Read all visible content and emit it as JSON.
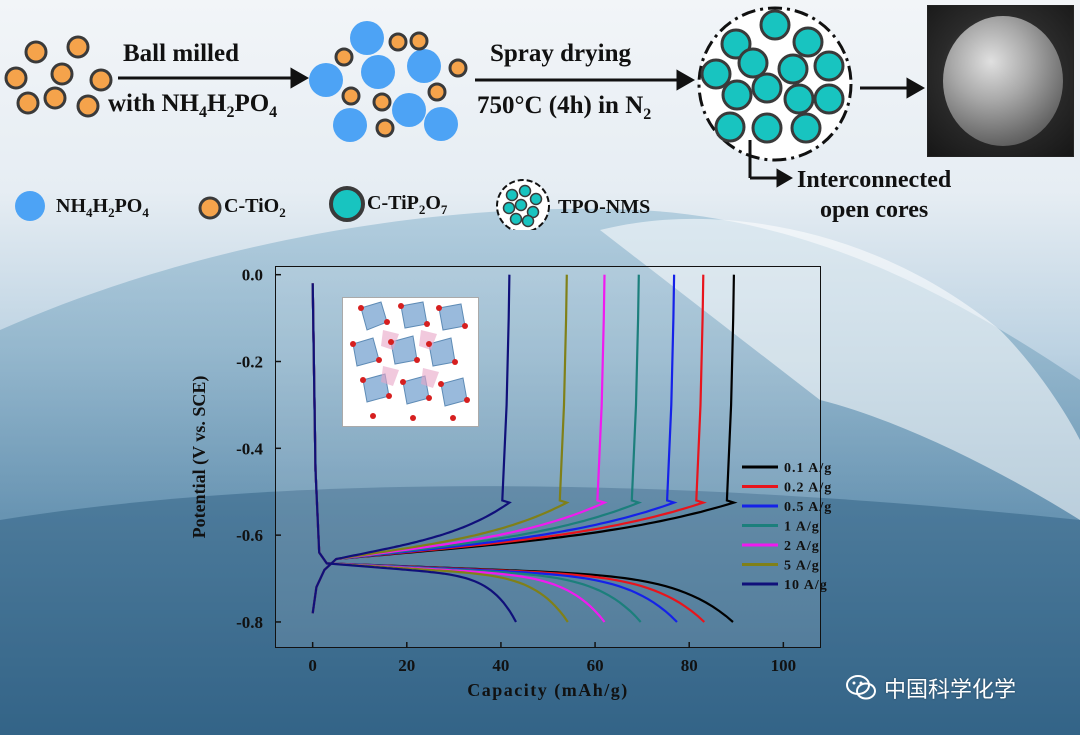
{
  "process": {
    "step1_line1": "Ball milled",
    "step1_line2": "with NH",
    "step1_sub": "4",
    "step1_mid": "H",
    "step1_sub2": "2",
    "step1_end": "PO",
    "step1_sub3": "4",
    "step2_line1": "Spray drying",
    "step2_line2": "750°C (4h) in N",
    "step2_sub": "2",
    "callout_line1": "Interconnected",
    "callout_line2": "open cores"
  },
  "legend": {
    "item1": {
      "main": "NH",
      "s1": "4",
      "m2": "H",
      "s2": "2",
      "m3": "PO",
      "s3": "4",
      "color": "#4da3f5"
    },
    "item2": {
      "main": "C-TiO",
      "s1": "2",
      "color": "#f5a34b"
    },
    "item3": {
      "main": "C-TiP",
      "s1": "2",
      "m2": "O",
      "s2": "7",
      "color": "#18c4c0"
    },
    "item4": {
      "main": "TPO-NMS"
    }
  },
  "chart_data": {
    "type": "line",
    "xlabel": "Capacity (mAh/g)",
    "ylabel": "Potential (V vs. SCE)",
    "xlim": [
      -8,
      108
    ],
    "ylim": [
      -0.86,
      0.02
    ],
    "xticks": [
      0,
      20,
      40,
      60,
      80,
      100
    ],
    "yticks": [
      0.0,
      -0.2,
      -0.4,
      -0.6,
      -0.8
    ],
    "legend_position": "right-middle",
    "series": [
      {
        "name": "0.1 A/g",
        "color": "#000000",
        "discharge_capacity": 89.3,
        "charge_capacity": 89.5
      },
      {
        "name": "0.2 A/g",
        "color": "#e8141c",
        "discharge_capacity": 83.2,
        "charge_capacity": 83.0
      },
      {
        "name": "0.5 A/g",
        "color": "#1522e8",
        "discharge_capacity": 77.4,
        "charge_capacity": 76.8
      },
      {
        "name": "1 A/g",
        "color": "#1c7f7c",
        "discharge_capacity": 69.7,
        "charge_capacity": 69.3
      },
      {
        "name": "2 A/g",
        "color": "#f01af0",
        "discharge_capacity": 62.0,
        "charge_capacity": 62.0
      },
      {
        "name": "5 A/g",
        "color": "#808018",
        "discharge_capacity": 54.2,
        "charge_capacity": 54.0
      },
      {
        "name": "10 A/g",
        "color": "#10107a",
        "discharge_capacity": 43.2,
        "charge_capacity": 41.8
      }
    ]
  },
  "watermark": {
    "text": "中国科学化学"
  }
}
